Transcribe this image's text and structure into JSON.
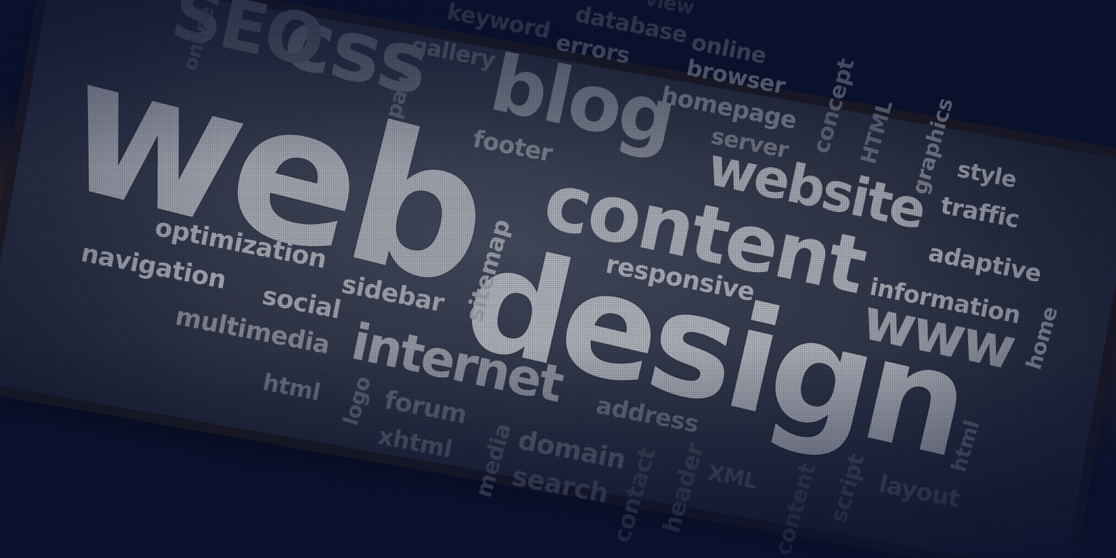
{
  "words": [
    {
      "key": "web",
      "text": "web",
      "color": "#b3b6bf"
    },
    {
      "key": "design",
      "text": "design",
      "color": "#c0c3cb"
    },
    {
      "key": "content",
      "text": "content",
      "color": "#b8bbc4"
    },
    {
      "key": "blog",
      "text": "blog",
      "color": "#8b909d"
    },
    {
      "key": "website",
      "text": "website",
      "color": "#aeb2bb"
    },
    {
      "key": "internet",
      "text": "internet",
      "color": "#a4a8b2"
    },
    {
      "key": "www",
      "text": "www",
      "color": "#a9adb7"
    },
    {
      "key": "css",
      "text": "css",
      "color": "#6e7484"
    },
    {
      "key": "seo",
      "text": "SEO",
      "color": "#5f6575"
    },
    {
      "key": "optimization",
      "text": "optimization",
      "color": "#b5b8c1"
    },
    {
      "key": "navigation",
      "text": "navigation",
      "color": "#b8bbc3"
    },
    {
      "key": "social",
      "text": "social",
      "color": "#aeb1ba"
    },
    {
      "key": "sidebar",
      "text": "sidebar",
      "color": "#b1b4bd"
    },
    {
      "key": "sitemap",
      "text": "sitemap",
      "color": "#a8acb5"
    },
    {
      "key": "responsive",
      "text": "responsive",
      "color": "#b9bcc5"
    },
    {
      "key": "multimedia",
      "text": "multimedia",
      "color": "#8f94a1"
    },
    {
      "key": "html_left",
      "text": "html",
      "color": "#7a8090"
    },
    {
      "key": "logo",
      "text": "logo",
      "color": "#6c7282"
    },
    {
      "key": "forum",
      "text": "forum",
      "color": "#6e7484"
    },
    {
      "key": "xhtml",
      "text": "xhtml",
      "color": "#676d7d"
    },
    {
      "key": "media",
      "text": "media",
      "color": "#5f6575"
    },
    {
      "key": "domain",
      "text": "domain",
      "color": "#707686"
    },
    {
      "key": "address",
      "text": "address",
      "color": "#7a8090"
    },
    {
      "key": "search",
      "text": "search",
      "color": "#5f6575"
    },
    {
      "key": "contact",
      "text": "contact",
      "color": "#525868"
    },
    {
      "key": "header",
      "text": "header",
      "color": "#525868"
    },
    {
      "key": "xml",
      "text": "XML",
      "color": "#5a6070"
    },
    {
      "key": "content_small",
      "text": "content",
      "color": "#4e5464"
    },
    {
      "key": "script",
      "text": "script",
      "color": "#555b6b"
    },
    {
      "key": "layout",
      "text": "layout",
      "color": "#5c6272"
    },
    {
      "key": "html_right",
      "text": "html",
      "color": "#6a7080"
    },
    {
      "key": "home",
      "text": "home",
      "color": "#9ea2ac"
    },
    {
      "key": "information",
      "text": "information",
      "color": "#b5b8c1"
    },
    {
      "key": "adaptive",
      "text": "adaptive",
      "color": "#b8bbc4"
    },
    {
      "key": "traffic",
      "text": "traffic",
      "color": "#b3b6bf"
    },
    {
      "key": "style",
      "text": "style",
      "color": "#aaaeb8"
    },
    {
      "key": "graphics",
      "text": "graphics",
      "color": "#858a97"
    },
    {
      "key": "html_upper",
      "text": "HTML",
      "color": "#6d7383"
    },
    {
      "key": "concept",
      "text": "concept",
      "color": "#6d7383"
    },
    {
      "key": "server",
      "text": "server",
      "color": "#7e8391"
    },
    {
      "key": "homepage",
      "text": "homepage",
      "color": "#8a8f9c"
    },
    {
      "key": "browser",
      "text": "browser",
      "color": "#7e8391"
    },
    {
      "key": "footer",
      "text": "footer",
      "color": "#8a8f9c"
    },
    {
      "key": "page",
      "text": "page",
      "color": "#6a7080"
    },
    {
      "key": "gallery",
      "text": "gallery",
      "color": "#6a7080"
    },
    {
      "key": "errors",
      "text": "errors",
      "color": "#686e7e"
    },
    {
      "key": "online_top",
      "text": "online",
      "color": "#5f6575"
    },
    {
      "key": "database",
      "text": "database",
      "color": "#585e6e"
    },
    {
      "key": "keyword",
      "text": "keyword",
      "color": "#4e5464"
    },
    {
      "key": "online_left",
      "text": "online",
      "color": "#555b6b"
    },
    {
      "key": "view",
      "text": "view",
      "color": "#4a5060"
    }
  ]
}
